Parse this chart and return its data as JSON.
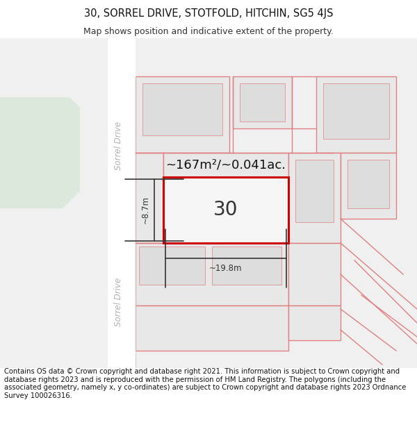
{
  "title": "30, SORREL DRIVE, STOTFOLD, HITCHIN, SG5 4JS",
  "subtitle": "Map shows position and indicative extent of the property.",
  "footer": "Contains OS data © Crown copyright and database right 2021. This information is subject to Crown copyright and database rights 2023 and is reproduced with the permission of HM Land Registry. The polygons (including the associated geometry, namely x, y co-ordinates) are subject to Crown copyright and database rights 2023 Ordnance Survey 100026316.",
  "bg_color": "#ffffff",
  "map_bg": "#f0f0f0",
  "road_color": "#ffffff",
  "plot_fill": "#e8e8e8",
  "highlight_fill": "#f5f5f5",
  "highlight_border": "#cc0000",
  "dim_color": "#333333",
  "road_label_color": "#b0b0b0",
  "green_fill": "#dce8dc",
  "pink": "#e08080",
  "area_text": "~167m²/~0.041ac.",
  "width_text": "~19.8m",
  "height_text": "~8.7m",
  "number_text": "30",
  "road_name": "Sorrel Drive",
  "title_fontsize": 10.5,
  "subtitle_fontsize": 9,
  "footer_fontsize": 7.2,
  "number_fontsize": 20,
  "area_fontsize": 13,
  "dim_fontsize": 8.5
}
